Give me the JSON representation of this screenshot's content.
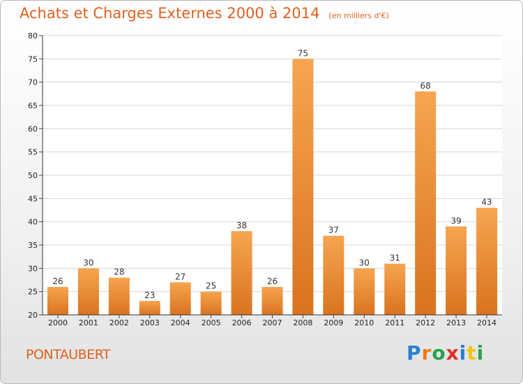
{
  "header": {
    "title": "Achats et Charges Externes 2000 à 2014",
    "unit_note": "(en milliers d'€)"
  },
  "footer": {
    "town": "PONTAUBERT",
    "logo_text": "Proxiti",
    "logo_colors": [
      "#2a7fd4",
      "#ee7a1a",
      "#27a34a",
      "#e0302a",
      "#2a7fd4",
      "#f0c419",
      "#27a34a"
    ]
  },
  "colors": {
    "accent": "#e2601f",
    "bar_light": "#f6a550",
    "bar_dark": "#d9731f",
    "grid": "#d4d4d4"
  },
  "chart_data": {
    "type": "bar",
    "title": "Achats et Charges Externes 2000 à 2014",
    "categories": [
      "2000",
      "2001",
      "2002",
      "2003",
      "2004",
      "2005",
      "2006",
      "2007",
      "2008",
      "2009",
      "2010",
      "2011",
      "2012",
      "2013",
      "2014"
    ],
    "values": [
      26,
      30,
      28,
      23,
      27,
      25,
      38,
      26,
      75,
      37,
      30,
      31,
      68,
      39,
      43
    ],
    "ylim": [
      20,
      80
    ],
    "yticks": [
      20,
      25,
      30,
      35,
      40,
      45,
      50,
      55,
      60,
      65,
      70,
      75,
      80
    ],
    "grid": true,
    "xlabel": "",
    "ylabel": ""
  }
}
